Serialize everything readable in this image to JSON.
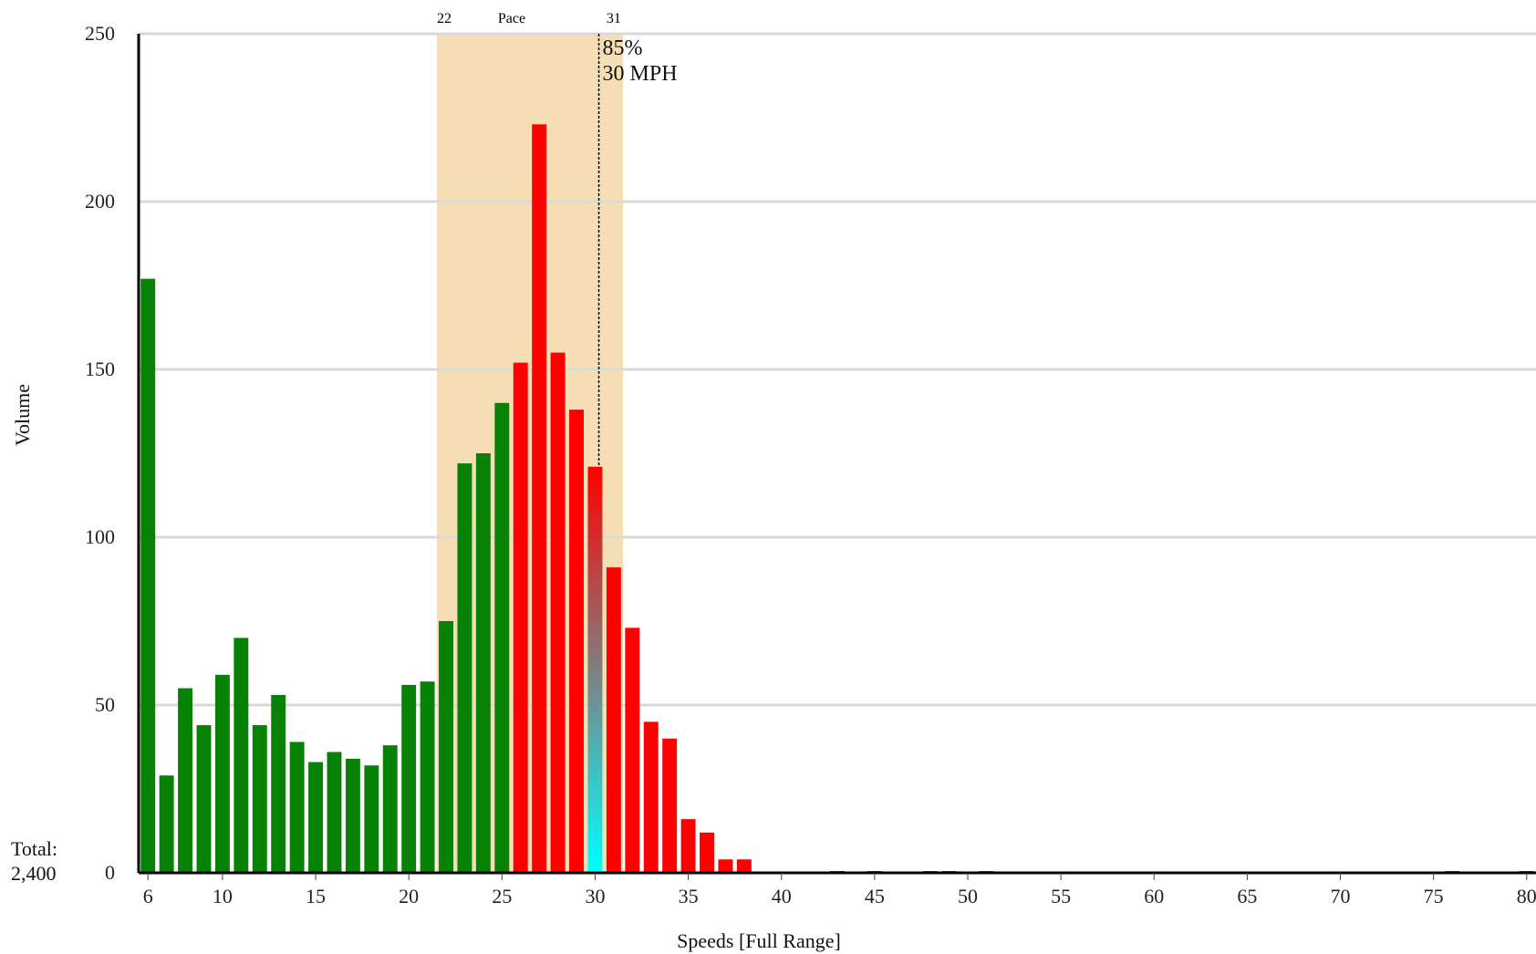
{
  "chart_data": {
    "type": "bar",
    "xlabel": "Speeds [Full Range]",
    "ylabel": "Volume",
    "xlim": [
      5.5,
      80.5
    ],
    "ylim": [
      0,
      250
    ],
    "x_ticks": [
      6,
      10,
      15,
      20,
      25,
      30,
      35,
      40,
      45,
      50,
      55,
      60,
      65,
      70,
      75,
      80
    ],
    "y_ticks": [
      0,
      50,
      100,
      150,
      200,
      250
    ],
    "grid": true,
    "total_label": "Total:",
    "total_value": "2,400",
    "pace": {
      "label": "Pace",
      "start": 22,
      "end": 31,
      "start_label": "22",
      "end_label": "31"
    },
    "percentile": {
      "speed": 30.2,
      "line1": "85%",
      "line2": "30 MPH"
    },
    "colors": {
      "below_pace_end": "#078207",
      "above": "#ff0000",
      "percentile_bar_top": "#ff0000",
      "percentile_bar_bottom": "#00ffff",
      "pace_band": "#f5deb3",
      "grid": "#d9d9d9",
      "axis": "#000000"
    },
    "series": [
      {
        "x": [
          6,
          7,
          8,
          9,
          10,
          11,
          12,
          13,
          14,
          15,
          16,
          17,
          18,
          19,
          20,
          21,
          22,
          23,
          24,
          25,
          26,
          27,
          28,
          29,
          30,
          31,
          32,
          33,
          34,
          35,
          36,
          37,
          38,
          43,
          45,
          48,
          49,
          51,
          76,
          80
        ],
        "values": [
          177,
          29,
          55,
          44,
          59,
          70,
          44,
          53,
          39,
          33,
          36,
          34,
          32,
          38,
          56,
          57,
          75,
          122,
          125,
          140,
          152,
          223,
          155,
          138,
          121,
          91,
          73,
          45,
          40,
          16,
          12,
          4,
          4,
          0.5,
          0.5,
          0.5,
          0.5,
          0.5,
          0.5,
          0.5
        ],
        "color_groups": [
          "g",
          "g",
          "g",
          "g",
          "g",
          "g",
          "g",
          "g",
          "g",
          "g",
          "g",
          "g",
          "g",
          "g",
          "g",
          "g",
          "g",
          "g",
          "g",
          "g",
          "r",
          "r",
          "r",
          "r",
          "p",
          "r",
          "r",
          "r",
          "r",
          "r",
          "r",
          "r",
          "r",
          "r",
          "r",
          "r",
          "r",
          "r",
          "r",
          "r"
        ]
      }
    ]
  }
}
